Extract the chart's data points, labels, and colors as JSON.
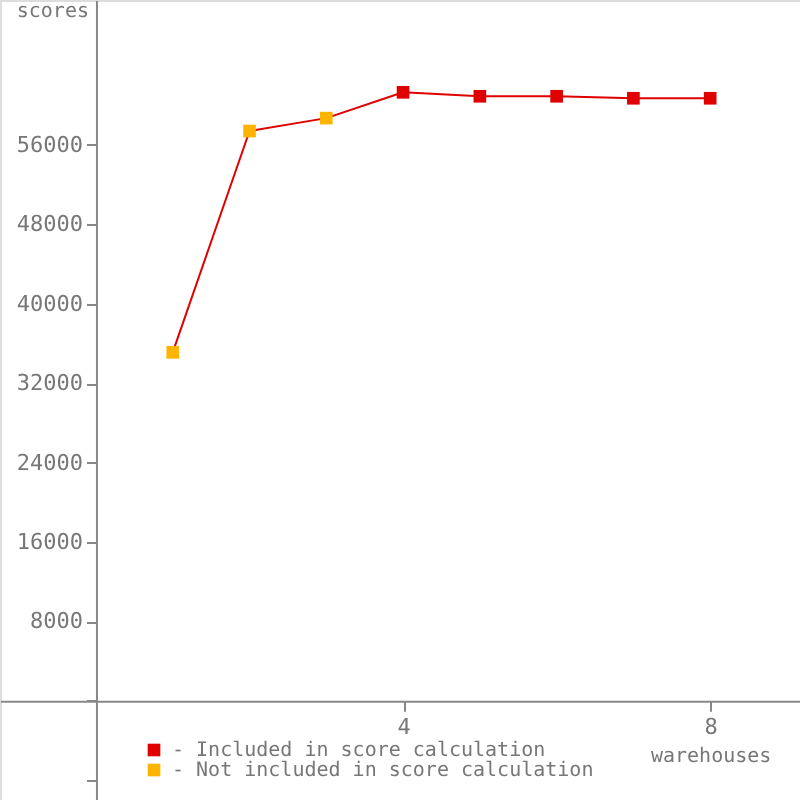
{
  "chart_data": {
    "type": "line",
    "xlabel": "warehouses",
    "ylabel": "scores",
    "xlim": [
      -1.25,
      9.17
    ],
    "ylim": [
      -10000,
      70600
    ],
    "xticks": [
      4,
      8
    ],
    "yticks": [
      {
        "value": -8000,
        "label": null
      },
      {
        "value": 0,
        "label": null
      },
      8000,
      16000,
      24000,
      32000,
      40000,
      48000,
      56000
    ],
    "grid": false,
    "legend": "bottom left",
    "series": [
      {
        "color": "#e00000",
        "marker": "none",
        "x": [
          1,
          2,
          3,
          4,
          5,
          6,
          7,
          8
        ],
        "values": [
          35100,
          57400,
          58700,
          61300,
          60900,
          60900,
          60700,
          60700
        ]
      },
      {
        "type": "scatter",
        "name": "- Included in score calculation",
        "color": "#e00000",
        "marker": "square",
        "x": [
          4,
          5,
          6,
          7,
          8
        ],
        "values": [
          61300,
          60900,
          60900,
          60700,
          60700
        ]
      },
      {
        "type": "scatter",
        "name": "- Not included in score calculation",
        "color": "#ffb400",
        "marker": "square",
        "x": [
          1,
          2,
          3
        ],
        "values": [
          35100,
          57400,
          58700
        ]
      }
    ]
  }
}
